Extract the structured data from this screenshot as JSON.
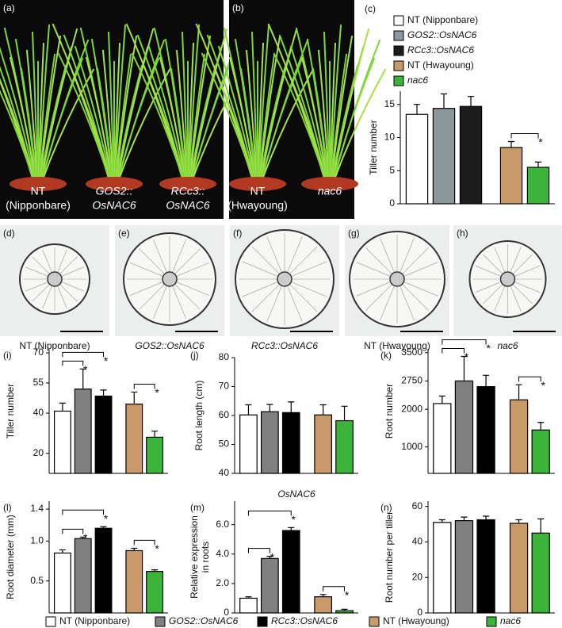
{
  "photos": [
    {
      "label": "(a)",
      "captions": [
        {
          "lines": [
            "NT",
            "(Nipponbare)"
          ]
        },
        {
          "lines": [
            "GOS2::",
            "OsNAC6"
          ],
          "italic": true
        },
        {
          "lines": [
            "RCc3::",
            "OsNAC6"
          ],
          "italic": true
        }
      ]
    },
    {
      "label": "(b)",
      "captions": [
        {
          "lines": [
            "NT",
            "(Hwayoung)"
          ]
        },
        {
          "lines": [
            "nac6"
          ],
          "italic": true
        }
      ]
    },
    {
      "label": "(d)",
      "captions": [
        {
          "lines": [
            "NT (Nipponbare)"
          ]
        }
      ]
    },
    {
      "label": "(e)",
      "captions": [
        {
          "lines": [
            "GOS2::OsNAC6"
          ],
          "italic": true
        }
      ]
    },
    {
      "label": "(f)",
      "captions": [
        {
          "lines": [
            "RCc3::OsNAC6"
          ],
          "italic": true
        }
      ]
    },
    {
      "label": "(g)",
      "captions": [
        {
          "lines": [
            "NT (Hwayoung)"
          ]
        }
      ]
    },
    {
      "label": "(h)",
      "captions": [
        {
          "lines": [
            "nac6"
          ],
          "italic": true
        }
      ]
    }
  ],
  "legends": [
    {
      "entries": [
        {
          "name": "NT (Nipponbare)",
          "color": "#ffffff"
        },
        {
          "name": "GOS2::OsNAC6",
          "color": "#8c979b",
          "italic": true
        },
        {
          "name": "RCc3::OsNAC6",
          "color": "#1c1c1c",
          "italic": true
        },
        {
          "name": "NT (Hwayoung)",
          "color": "#c89a67"
        },
        {
          "name": "nac6",
          "color": "#3cb43c",
          "italic": true
        }
      ]
    },
    {
      "entries": [
        {
          "name": "NT (Nipponbare)",
          "color": "#ffffff"
        },
        {
          "name": "GOS2::OsNAC6",
          "color": "#808080",
          "italic": true
        },
        {
          "name": "RCc3::OsNAC6",
          "color": "#000000",
          "italic": true
        },
        {
          "name": "NT (Hwayoung)",
          "color": "#c89a67"
        },
        {
          "name": "nac6",
          "color": "#3cb43c",
          "italic": true
        }
      ]
    }
  ],
  "chart_data": [
    {
      "type": "bar",
      "label": "(c)",
      "ylabel": [
        "Tiller number"
      ],
      "ylim": [
        0,
        17
      ],
      "yticks": [
        0,
        5,
        10,
        15
      ],
      "values": [
        13.5,
        14.4,
        14.7,
        8.5,
        5.5
      ],
      "errors": [
        1.5,
        2.2,
        1.5,
        0.9,
        0.8
      ],
      "colors": [
        "#ffffff",
        "#8c979b",
        "#1c1c1c",
        "#c89a67",
        "#3cb43c"
      ],
      "significance": [
        {
          "pair": [
            3,
            4
          ],
          "label": "*"
        }
      ]
    },
    {
      "type": "bar",
      "label": "(i)",
      "ylabel": [
        "Tiller number"
      ],
      "ylim": [
        10,
        72
      ],
      "yticks": [
        20,
        40,
        55,
        70
      ],
      "values": [
        41,
        52,
        48.5,
        44.5,
        28
      ],
      "errors": [
        4,
        10,
        3,
        6,
        3
      ],
      "colors": [
        "#ffffff",
        "#808080",
        "#000000",
        "#c89a67",
        "#3cb43c"
      ],
      "significance": [
        {
          "pair": [
            0,
            1
          ],
          "label": "*"
        },
        {
          "pair": [
            0,
            2
          ],
          "label": "*"
        },
        {
          "pair": [
            3,
            4
          ],
          "label": "*"
        }
      ]
    },
    {
      "type": "bar",
      "label": "(j)",
      "ylabel": [
        "Root length (cm)"
      ],
      "ylim": [
        40,
        80
      ],
      "yticks": [
        40,
        50,
        60,
        70,
        80
      ],
      "values": [
        60.2,
        61.3,
        61,
        60.2,
        58.2
      ],
      "errors": [
        3.5,
        2.5,
        3.7,
        3.5,
        5
      ],
      "colors": [
        "#ffffff",
        "#808080",
        "#000000",
        "#c89a67",
        "#3cb43c"
      ],
      "significance": []
    },
    {
      "type": "bar",
      "label": "(k)",
      "ylabel": [
        "Root number"
      ],
      "ylim": [
        300,
        3600
      ],
      "yticks": [
        1000,
        2000,
        2750,
        3500
      ],
      "values": [
        2150,
        2750,
        2600,
        2250,
        1450
      ],
      "errors": [
        200,
        650,
        300,
        400,
        200
      ],
      "colors": [
        "#ffffff",
        "#808080",
        "#000000",
        "#c89a67",
        "#3cb43c"
      ],
      "significance": [
        {
          "pair": [
            0,
            1
          ],
          "label": "*"
        },
        {
          "pair": [
            0,
            2
          ],
          "label": "*"
        },
        {
          "pair": [
            3,
            4
          ],
          "label": "*"
        }
      ]
    },
    {
      "type": "bar",
      "label": "(l)",
      "ylabel": [
        "Root diameter (mm)"
      ],
      "ylim": [
        0.1,
        1.5
      ],
      "yticks": [
        0.5,
        {
          "value": 1,
          "label": "1.0"
        },
        1.4
      ],
      "values": [
        0.85,
        1.03,
        1.16,
        0.88,
        0.62
      ],
      "errors": [
        0.04,
        0.02,
        0.02,
        0.03,
        0.02
      ],
      "colors": [
        "#ffffff",
        "#808080",
        "#000000",
        "#c89a67",
        "#3cb43c"
      ],
      "significance": [
        {
          "pair": [
            0,
            1
          ],
          "label": "*"
        },
        {
          "pair": [
            0,
            2
          ],
          "label": "*"
        },
        {
          "pair": [
            3,
            4
          ],
          "label": "*"
        }
      ]
    },
    {
      "type": "bar",
      "label": "(m)",
      "title": "OsNAC6",
      "ylabel": [
        "Relative expression",
        "in roots"
      ],
      "ylim": [
        0,
        7.6
      ],
      "yticks": [
        0,
        {
          "value": 2,
          "label": "2.0"
        },
        {
          "value": 4,
          "label": "4.0"
        },
        {
          "value": 6,
          "label": "6.0"
        }
      ],
      "values": [
        1.0,
        3.7,
        5.6,
        1.1,
        0.15
      ],
      "errors": [
        0.1,
        0.15,
        0.2,
        0.15,
        0.1
      ],
      "colors": [
        "#ffffff",
        "#808080",
        "#000000",
        "#c89a67",
        "#3cb43c"
      ],
      "significance": [
        {
          "pair": [
            0,
            1
          ],
          "label": "*"
        },
        {
          "pair": [
            0,
            2
          ],
          "label": "*"
        },
        {
          "pair": [
            3,
            4
          ],
          "label": "*"
        }
      ]
    },
    {
      "type": "bar",
      "label": "(n)",
      "ylabel": [
        "Root number per tiller"
      ],
      "ylim": [
        0,
        63
      ],
      "yticks": [
        0,
        20,
        40,
        60
      ],
      "values": [
        51,
        52,
        52.5,
        50.5,
        45
      ],
      "errors": [
        1.5,
        2,
        2,
        2,
        8
      ],
      "colors": [
        "#ffffff",
        "#808080",
        "#000000",
        "#c89a67",
        "#3cb43c"
      ],
      "significance": []
    }
  ]
}
